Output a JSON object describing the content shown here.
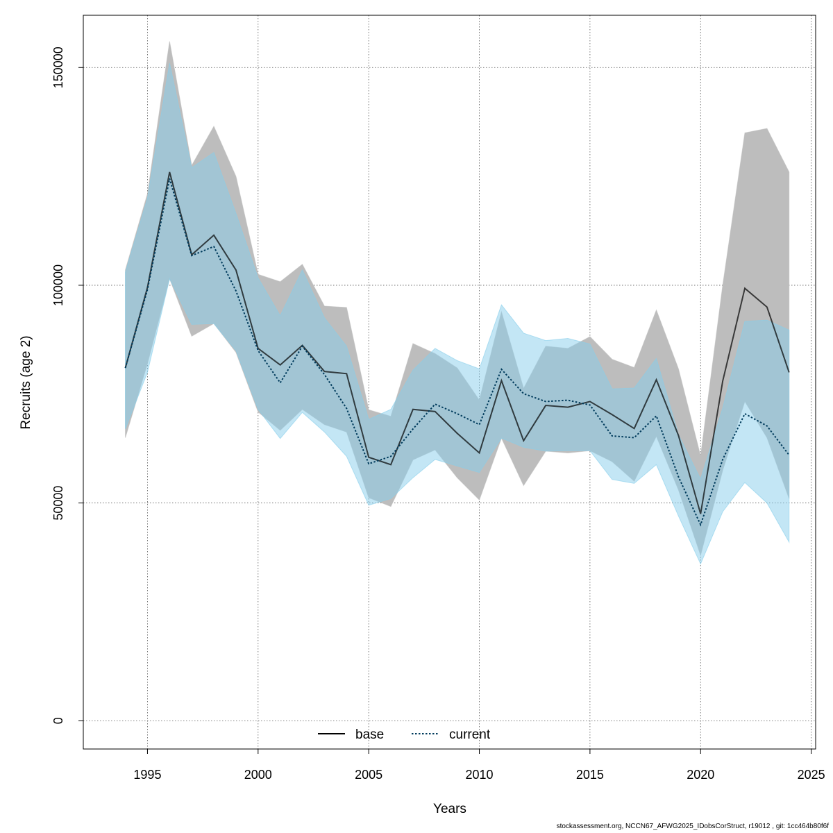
{
  "chart_data": {
    "type": "line",
    "xlabel": "Years",
    "ylabel": "Recruits (age 2)",
    "xlim": [
      1992.1,
      2025.2
    ],
    "ylim": [
      -6500,
      162000
    ],
    "x_ticks": [
      1995,
      2000,
      2005,
      2010,
      2015,
      2020,
      2025
    ],
    "y_ticks": [
      0,
      50000,
      100000,
      150000
    ],
    "grid": true,
    "legend_position": "bottom-center",
    "years": [
      1994,
      1995,
      1996,
      1997,
      1998,
      1999,
      2000,
      2001,
      2002,
      2003,
      2004,
      2005,
      2006,
      2007,
      2008,
      2009,
      2010,
      2011,
      2012,
      2013,
      2014,
      2015,
      2016,
      2017,
      2018,
      2019,
      2020,
      2021,
      2022,
      2023,
      2024
    ],
    "series": [
      {
        "name": "base",
        "line_style": "solid",
        "line_color": "#000000",
        "band_color": "#bdbdbd",
        "values": [
          81000,
          99500,
          126000,
          107000,
          111500,
          103500,
          85500,
          81700,
          86200,
          80200,
          79700,
          60500,
          58800,
          71500,
          71000,
          66000,
          61500,
          78100,
          64300,
          72400,
          72000,
          73300,
          70300,
          67100,
          78300,
          65500,
          47500,
          78000,
          99300,
          95000,
          80000
        ],
        "lower": [
          65000,
          82000,
          101500,
          88300,
          91200,
          84600,
          70900,
          66700,
          71500,
          68000,
          66300,
          51200,
          49200,
          59900,
          62200,
          55800,
          50700,
          64900,
          54000,
          61900,
          61500,
          62000,
          59500,
          55000,
          65300,
          53000,
          38000,
          57500,
          73300,
          65000,
          51000
        ],
        "upper": [
          103500,
          121000,
          156000,
          127500,
          136500,
          125000,
          102500,
          100800,
          104800,
          95200,
          94900,
          71400,
          69900,
          86600,
          84300,
          81000,
          73600,
          93900,
          76300,
          86000,
          85500,
          88200,
          83000,
          81100,
          94300,
          80800,
          60800,
          100000,
          135000,
          136000,
          126000
        ]
      },
      {
        "name": "current",
        "line_style": "dotted",
        "line_color": "#003b5c",
        "band_color": "#87ceeb",
        "values": [
          81000,
          99000,
          124500,
          106800,
          108900,
          98700,
          85000,
          77600,
          86000,
          79500,
          71700,
          59000,
          60700,
          67000,
          72700,
          70500,
          68000,
          80700,
          75100,
          73300,
          73600,
          72500,
          65400,
          65000,
          70000,
          56000,
          45000,
          60000,
          70500,
          67700,
          61000
        ],
        "lower": [
          67000,
          80000,
          101500,
          91000,
          91200,
          85000,
          71500,
          64800,
          70800,
          66300,
          60700,
          49500,
          51000,
          55800,
          60000,
          58500,
          57000,
          64900,
          62800,
          61900,
          62000,
          62000,
          55400,
          54500,
          58800,
          47000,
          36000,
          48000,
          54700,
          50000,
          41000
        ],
        "upper": [
          103000,
          120000,
          151000,
          127000,
          130500,
          116500,
          101700,
          93000,
          103500,
          92500,
          86000,
          69200,
          71500,
          80500,
          85500,
          82700,
          80800,
          95500,
          89000,
          87300,
          87800,
          86500,
          76200,
          76400,
          83200,
          65700,
          55500,
          71800,
          91700,
          92000,
          89700
        ]
      }
    ]
  },
  "footer": "stockassessment.org, NCCN67_AFWG2025_IDobsCorStruct, r19012 , git: 1cc464b80f6f"
}
